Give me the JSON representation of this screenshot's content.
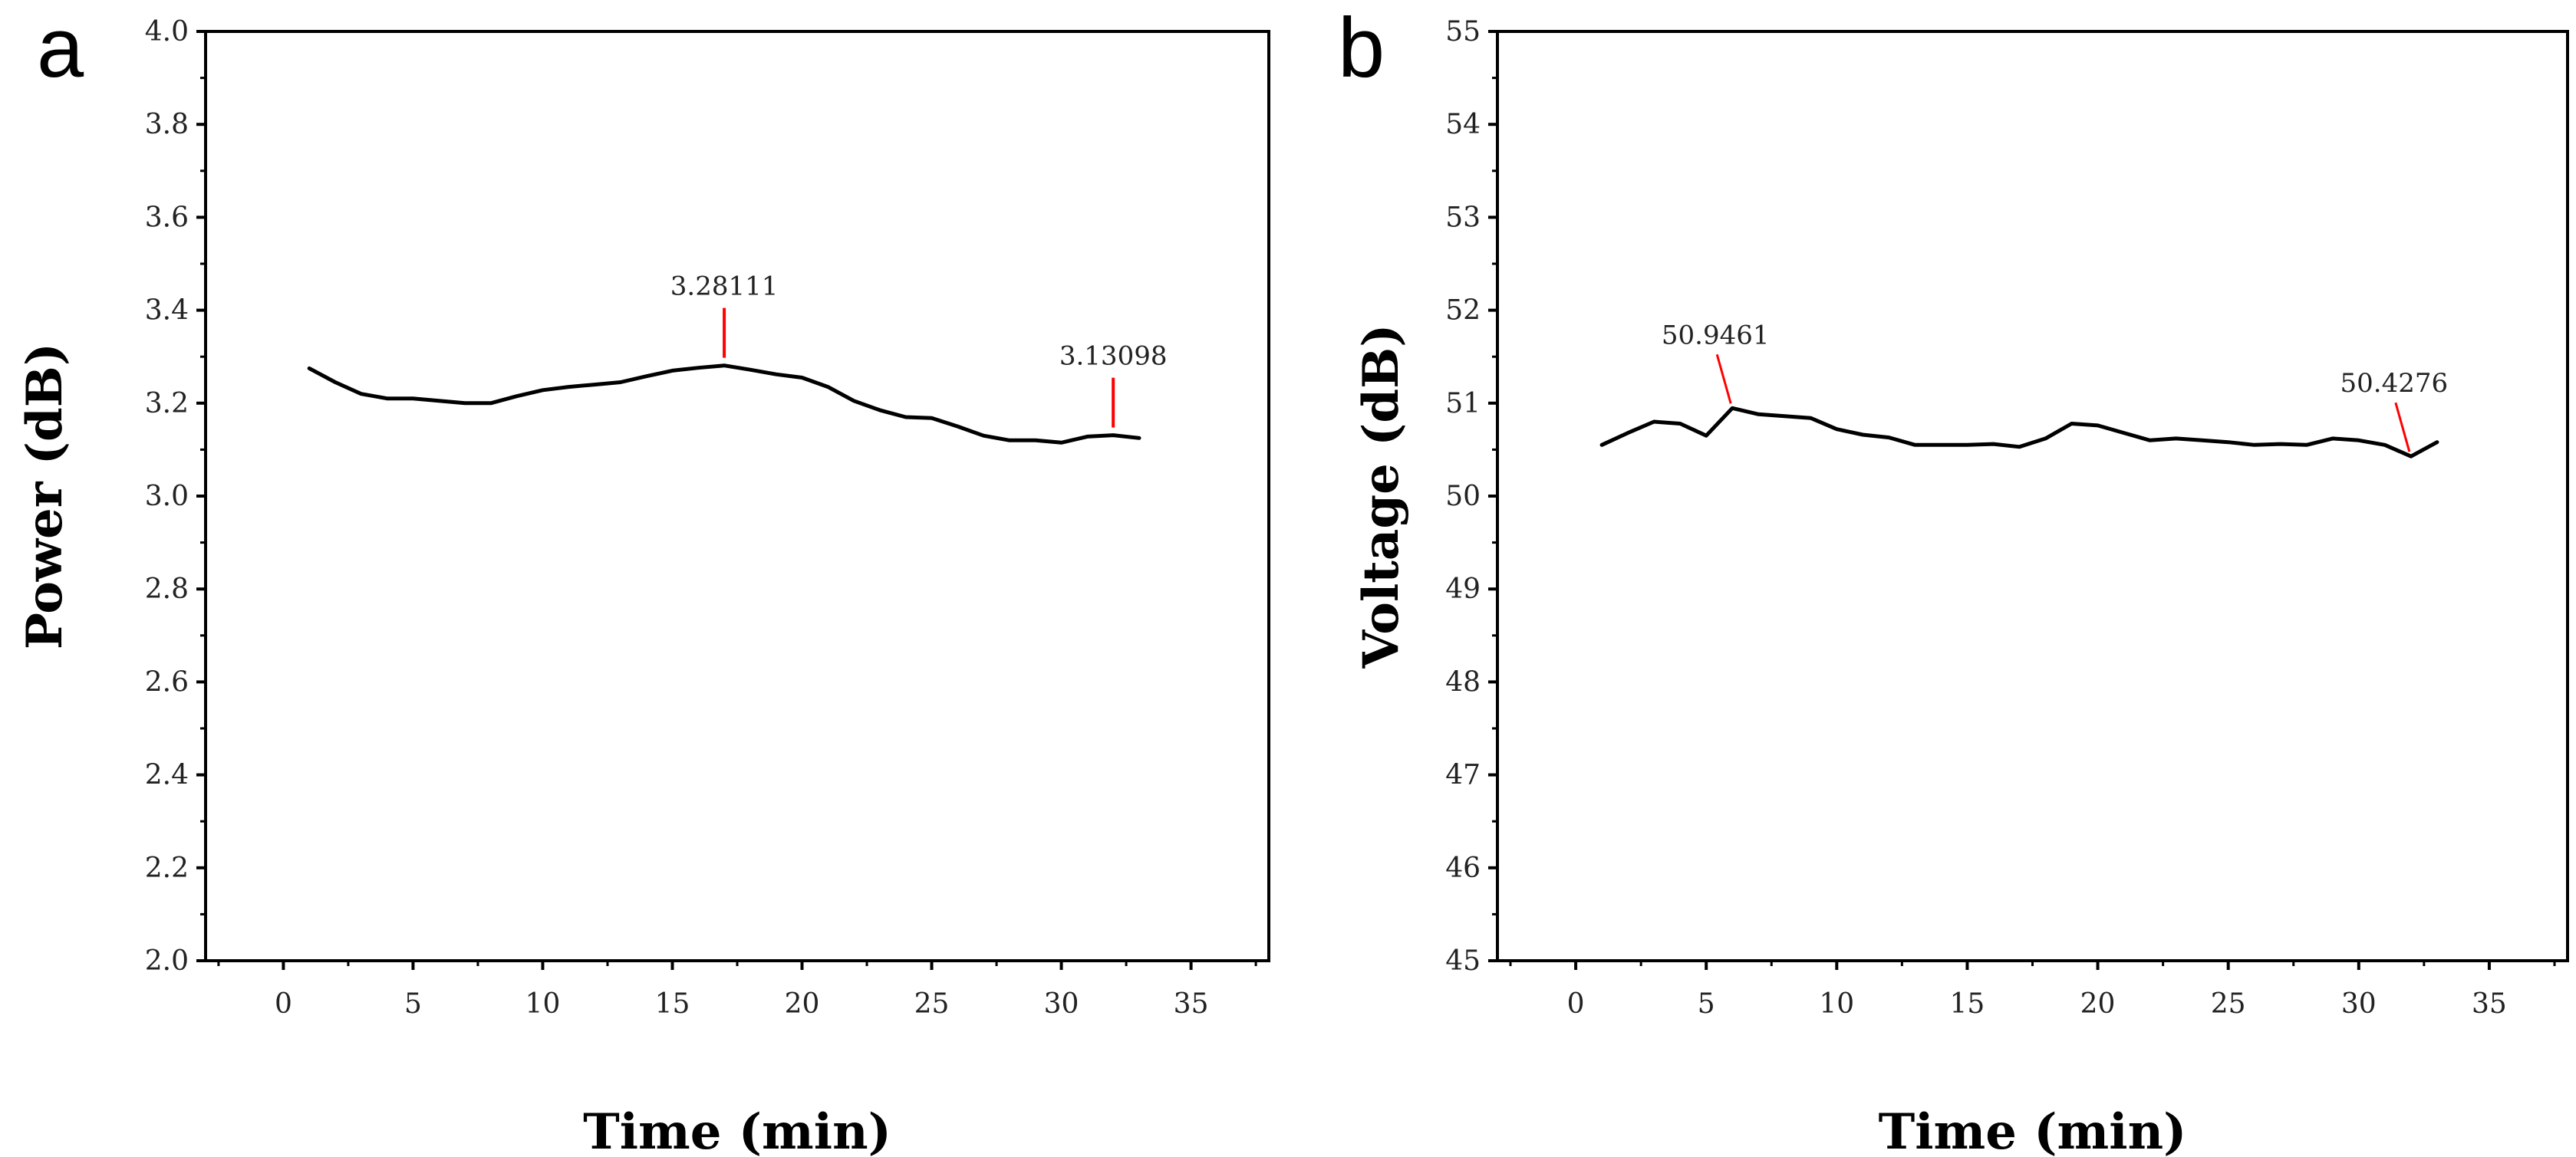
{
  "chart_data": [
    {
      "type": "line",
      "panel_label": "a",
      "xlabel": "Time (min)",
      "ylabel": "Power (dB)",
      "xlim": [
        -3,
        38
      ],
      "ylim": [
        2.0,
        4.0
      ],
      "xticks": [
        0,
        5,
        10,
        15,
        20,
        25,
        30,
        35
      ],
      "xtick_labels": [
        "0",
        "5",
        "10",
        "15",
        "20",
        "25",
        "30",
        "35"
      ],
      "yticks": [
        2.0,
        2.2,
        2.4,
        2.6,
        2.8,
        3.0,
        3.2,
        3.4,
        3.6,
        3.8,
        4.0
      ],
      "ytick_labels": [
        "2.0",
        "2.2",
        "2.4",
        "2.6",
        "2.8",
        "3.0",
        "3.2",
        "3.4",
        "3.6",
        "3.8",
        "4.0"
      ],
      "series": [
        {
          "name": "Power",
          "x": [
            1,
            2,
            3,
            4,
            5,
            6,
            7,
            8,
            9,
            10,
            11,
            12,
            13,
            14,
            15,
            16,
            17,
            18,
            19,
            20,
            21,
            22,
            23,
            24,
            25,
            26,
            27,
            28,
            29,
            30,
            31,
            32,
            33
          ],
          "values": [
            3.275,
            3.245,
            3.22,
            3.21,
            3.21,
            3.205,
            3.2,
            3.2,
            3.215,
            3.228,
            3.235,
            3.24,
            3.245,
            3.258,
            3.27,
            3.276,
            3.281,
            3.272,
            3.262,
            3.255,
            3.235,
            3.205,
            3.185,
            3.17,
            3.168,
            3.15,
            3.13,
            3.12,
            3.12,
            3.115,
            3.128,
            3.131,
            3.125
          ],
          "color": "#000000"
        }
      ],
      "annotations": [
        {
          "text": "3.28111",
          "x": 17,
          "y": 3.28111,
          "color": "#ff0000"
        },
        {
          "text": "3.13098",
          "x": 32,
          "y": 3.13098,
          "color": "#ff0000"
        }
      ]
    },
    {
      "type": "line",
      "panel_label": "b",
      "xlabel": "Time (min)",
      "ylabel": "Voltage (dB)",
      "xlim": [
        -3,
        38
      ],
      "ylim": [
        45,
        55
      ],
      "xticks": [
        0,
        5,
        10,
        15,
        20,
        25,
        30,
        35
      ],
      "xtick_labels": [
        "0",
        "5",
        "10",
        "15",
        "20",
        "25",
        "30",
        "35"
      ],
      "yticks": [
        45,
        46,
        47,
        48,
        49,
        50,
        51,
        52,
        53,
        54,
        55
      ],
      "ytick_labels": [
        "45",
        "46",
        "47",
        "48",
        "49",
        "50",
        "51",
        "52",
        "53",
        "54",
        "55"
      ],
      "series": [
        {
          "name": "Voltage",
          "x": [
            1,
            2,
            3,
            4,
            5,
            6,
            7,
            8,
            9,
            10,
            11,
            12,
            13,
            14,
            15,
            16,
            17,
            18,
            19,
            20,
            21,
            22,
            23,
            24,
            25,
            26,
            27,
            28,
            29,
            30,
            31,
            32,
            33
          ],
          "values": [
            50.55,
            50.68,
            50.8,
            50.78,
            50.65,
            50.9461,
            50.88,
            50.86,
            50.84,
            50.72,
            50.66,
            50.63,
            50.55,
            50.55,
            50.55,
            50.56,
            50.53,
            50.62,
            50.78,
            50.76,
            50.68,
            50.6,
            50.62,
            50.6,
            50.58,
            50.55,
            50.56,
            50.55,
            50.62,
            50.6,
            50.55,
            50.4276,
            50.58
          ],
          "color": "#000000"
        }
      ],
      "annotations": [
        {
          "text": "50.9461",
          "x": 6,
          "y": 50.9461,
          "color": "#ff0000"
        },
        {
          "text": "50.4276",
          "x": 32,
          "y": 50.4276,
          "color": "#ff0000"
        }
      ]
    }
  ]
}
